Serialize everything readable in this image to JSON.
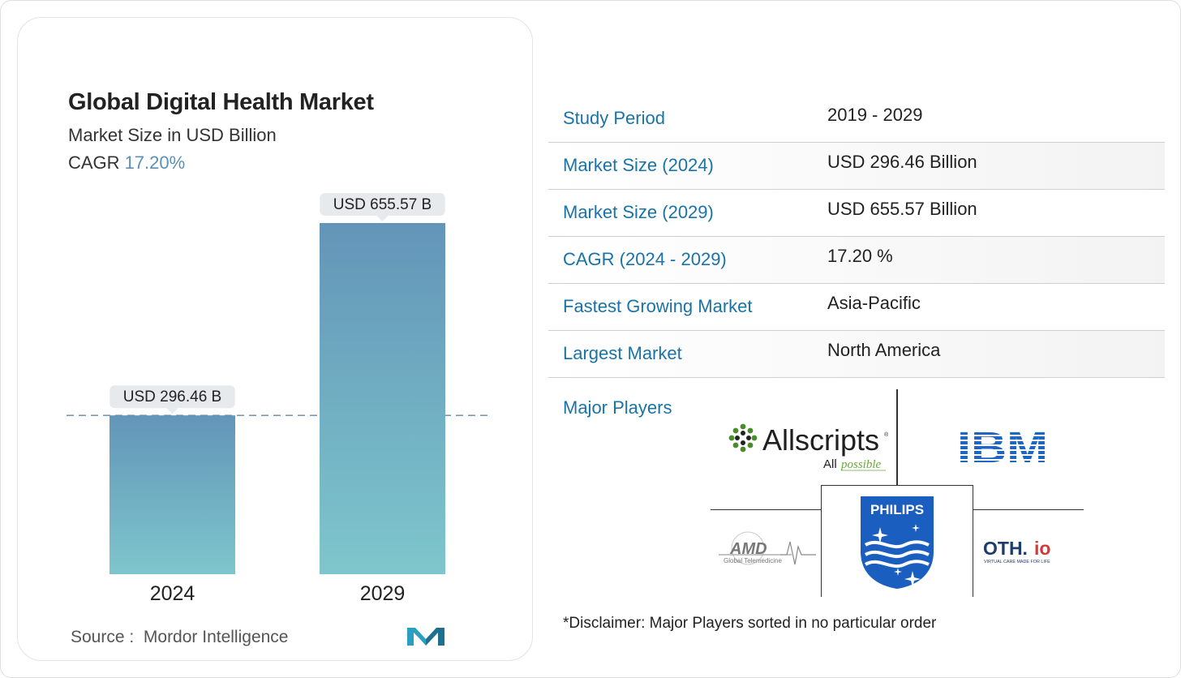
{
  "chart_data": {
    "type": "bar",
    "title": "Global Digital Health Market",
    "subtitle": "Market Size in USD Billion",
    "cagr_label": "CAGR",
    "cagr_value": "17.20%",
    "categories": [
      "2024",
      "2029"
    ],
    "values": [
      296.46,
      655.57
    ],
    "data_labels": [
      "USD 296.46 B",
      "USD 655.57 B"
    ],
    "ylim": [
      0,
      700
    ],
    "reference_line": "dashed line at 2024 value",
    "bar_color_top": "#6395b8",
    "bar_color_bottom": "#7ec6cc"
  },
  "source": {
    "label": "Source :",
    "name": "Mordor Intelligence"
  },
  "table": [
    {
      "key": "Study Period",
      "value": "2019 - 2029"
    },
    {
      "key": "Market Size (2024)",
      "value": "USD 296.46 Billion"
    },
    {
      "key": "Market Size (2029)",
      "value": "USD 655.57 Billion"
    },
    {
      "key": "CAGR (2024 - 2029)",
      "value": "17.20 %"
    },
    {
      "key": "Fastest Growing Market",
      "value": "Asia-Pacific"
    },
    {
      "key": "Largest Market",
      "value": "North America"
    }
  ],
  "players": {
    "label": "Major Players",
    "logos": [
      "Allscripts",
      "IBM",
      "AMD Global Telemedicine",
      "PHILIPS",
      "OTH.io"
    ],
    "allscripts_tagline": "All possible",
    "amd_sub": "Global Telemedicine",
    "oth_tagline": "VIRTUAL CARE MADE FOR LIFE"
  },
  "disclaimer": "*Disclaimer: Major Players sorted in no particular order",
  "colors": {
    "accent": "#1a73a8",
    "cagr": "#5c8fb3"
  }
}
